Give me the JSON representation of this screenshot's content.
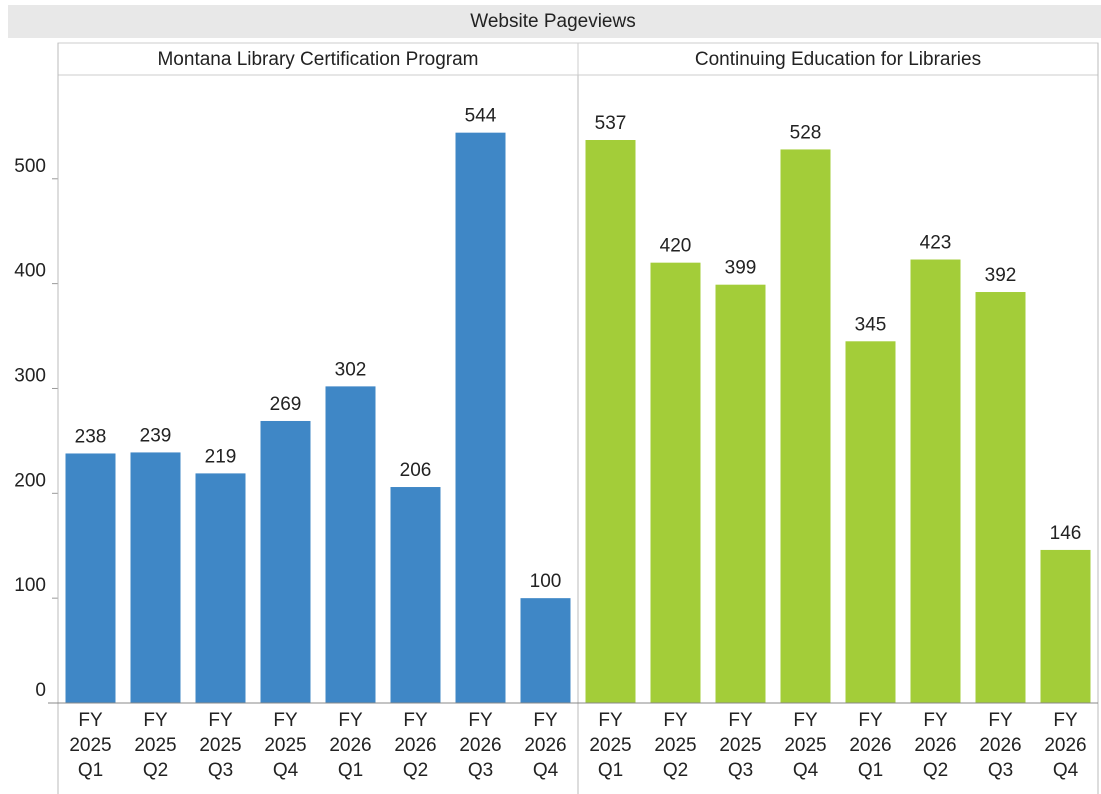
{
  "chart_data": {
    "type": "bar",
    "title": "Website Pageviews",
    "categories": [
      "FY 2025 Q1",
      "FY 2025 Q2",
      "FY 2025 Q3",
      "FY 2025 Q4",
      "FY 2026 Q1",
      "FY 2026 Q2",
      "FY 2026 Q3",
      "FY 2026 Q4"
    ],
    "series": [
      {
        "name": "Montana Library Certification Program",
        "color": "#3f87c6",
        "values": [
          238,
          239,
          219,
          269,
          302,
          206,
          544,
          100
        ]
      },
      {
        "name": "Continuing Education for Libraries",
        "color": "#a3cd39",
        "values": [
          537,
          420,
          399,
          528,
          345,
          423,
          392,
          146
        ]
      }
    ],
    "ylim": [
      0,
      599
    ],
    "yticks": [
      0,
      100,
      200,
      300,
      400,
      500
    ]
  }
}
